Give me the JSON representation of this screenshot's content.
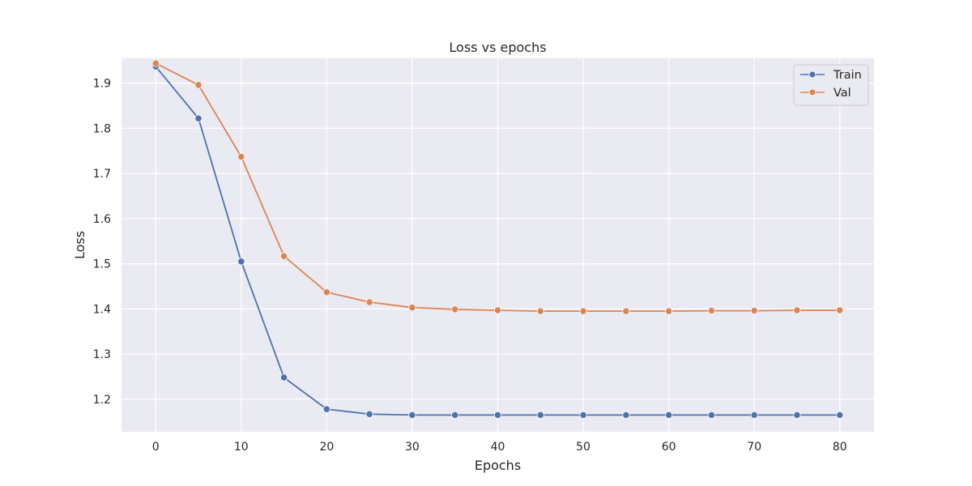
{
  "chart_data": {
    "type": "line",
    "title": "Loss vs epochs",
    "xlabel": "Epochs",
    "ylabel": "Loss",
    "xlim": [
      -4,
      84
    ],
    "ylim": [
      1.128,
      1.955
    ],
    "xticks": [
      0,
      10,
      20,
      30,
      40,
      50,
      60,
      70,
      80
    ],
    "yticks": [
      1.2,
      1.3,
      1.4,
      1.5,
      1.6,
      1.7,
      1.8,
      1.9
    ],
    "grid": true,
    "legend_position": "top-right",
    "x": [
      0,
      5,
      10,
      15,
      20,
      25,
      30,
      35,
      40,
      45,
      50,
      55,
      60,
      65,
      70,
      75,
      80
    ],
    "series": [
      {
        "name": "Train",
        "color": "#4c72b0",
        "values": [
          1.937,
          1.822,
          1.505,
          1.248,
          1.178,
          1.167,
          1.165,
          1.165,
          1.165,
          1.165,
          1.165,
          1.165,
          1.165,
          1.165,
          1.165,
          1.165,
          1.165
        ]
      },
      {
        "name": "Val",
        "color": "#dd8452",
        "values": [
          1.944,
          1.896,
          1.737,
          1.517,
          1.437,
          1.415,
          1.403,
          1.399,
          1.397,
          1.395,
          1.395,
          1.395,
          1.395,
          1.396,
          1.396,
          1.397,
          1.397
        ]
      }
    ]
  }
}
